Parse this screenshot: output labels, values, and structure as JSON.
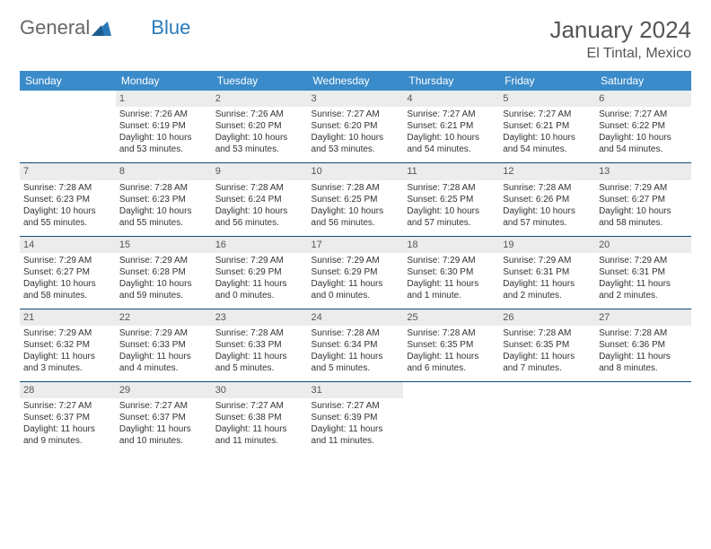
{
  "brand": {
    "part1": "General",
    "part2": "Blue"
  },
  "title": "January 2024",
  "location": "El Tintal, Mexico",
  "colors": {
    "header_bg": "#3a8bc9",
    "header_text": "#ffffff",
    "daynum_bg": "#ececec",
    "row_divider": "#0d4b7a",
    "text": "#333333",
    "title_text": "#555555",
    "logo_gray": "#666666",
    "logo_blue": "#2a7ab9"
  },
  "weekdays": [
    "Sunday",
    "Monday",
    "Tuesday",
    "Wednesday",
    "Thursday",
    "Friday",
    "Saturday"
  ],
  "weeks": [
    [
      {
        "n": "",
        "sr": "",
        "ss": "",
        "dl": ""
      },
      {
        "n": "1",
        "sr": "Sunrise: 7:26 AM",
        "ss": "Sunset: 6:19 PM",
        "dl": "Daylight: 10 hours and 53 minutes."
      },
      {
        "n": "2",
        "sr": "Sunrise: 7:26 AM",
        "ss": "Sunset: 6:20 PM",
        "dl": "Daylight: 10 hours and 53 minutes."
      },
      {
        "n": "3",
        "sr": "Sunrise: 7:27 AM",
        "ss": "Sunset: 6:20 PM",
        "dl": "Daylight: 10 hours and 53 minutes."
      },
      {
        "n": "4",
        "sr": "Sunrise: 7:27 AM",
        "ss": "Sunset: 6:21 PM",
        "dl": "Daylight: 10 hours and 54 minutes."
      },
      {
        "n": "5",
        "sr": "Sunrise: 7:27 AM",
        "ss": "Sunset: 6:21 PM",
        "dl": "Daylight: 10 hours and 54 minutes."
      },
      {
        "n": "6",
        "sr": "Sunrise: 7:27 AM",
        "ss": "Sunset: 6:22 PM",
        "dl": "Daylight: 10 hours and 54 minutes."
      }
    ],
    [
      {
        "n": "7",
        "sr": "Sunrise: 7:28 AM",
        "ss": "Sunset: 6:23 PM",
        "dl": "Daylight: 10 hours and 55 minutes."
      },
      {
        "n": "8",
        "sr": "Sunrise: 7:28 AM",
        "ss": "Sunset: 6:23 PM",
        "dl": "Daylight: 10 hours and 55 minutes."
      },
      {
        "n": "9",
        "sr": "Sunrise: 7:28 AM",
        "ss": "Sunset: 6:24 PM",
        "dl": "Daylight: 10 hours and 56 minutes."
      },
      {
        "n": "10",
        "sr": "Sunrise: 7:28 AM",
        "ss": "Sunset: 6:25 PM",
        "dl": "Daylight: 10 hours and 56 minutes."
      },
      {
        "n": "11",
        "sr": "Sunrise: 7:28 AM",
        "ss": "Sunset: 6:25 PM",
        "dl": "Daylight: 10 hours and 57 minutes."
      },
      {
        "n": "12",
        "sr": "Sunrise: 7:28 AM",
        "ss": "Sunset: 6:26 PM",
        "dl": "Daylight: 10 hours and 57 minutes."
      },
      {
        "n": "13",
        "sr": "Sunrise: 7:29 AM",
        "ss": "Sunset: 6:27 PM",
        "dl": "Daylight: 10 hours and 58 minutes."
      }
    ],
    [
      {
        "n": "14",
        "sr": "Sunrise: 7:29 AM",
        "ss": "Sunset: 6:27 PM",
        "dl": "Daylight: 10 hours and 58 minutes."
      },
      {
        "n": "15",
        "sr": "Sunrise: 7:29 AM",
        "ss": "Sunset: 6:28 PM",
        "dl": "Daylight: 10 hours and 59 minutes."
      },
      {
        "n": "16",
        "sr": "Sunrise: 7:29 AM",
        "ss": "Sunset: 6:29 PM",
        "dl": "Daylight: 11 hours and 0 minutes."
      },
      {
        "n": "17",
        "sr": "Sunrise: 7:29 AM",
        "ss": "Sunset: 6:29 PM",
        "dl": "Daylight: 11 hours and 0 minutes."
      },
      {
        "n": "18",
        "sr": "Sunrise: 7:29 AM",
        "ss": "Sunset: 6:30 PM",
        "dl": "Daylight: 11 hours and 1 minute."
      },
      {
        "n": "19",
        "sr": "Sunrise: 7:29 AM",
        "ss": "Sunset: 6:31 PM",
        "dl": "Daylight: 11 hours and 2 minutes."
      },
      {
        "n": "20",
        "sr": "Sunrise: 7:29 AM",
        "ss": "Sunset: 6:31 PM",
        "dl": "Daylight: 11 hours and 2 minutes."
      }
    ],
    [
      {
        "n": "21",
        "sr": "Sunrise: 7:29 AM",
        "ss": "Sunset: 6:32 PM",
        "dl": "Daylight: 11 hours and 3 minutes."
      },
      {
        "n": "22",
        "sr": "Sunrise: 7:29 AM",
        "ss": "Sunset: 6:33 PM",
        "dl": "Daylight: 11 hours and 4 minutes."
      },
      {
        "n": "23",
        "sr": "Sunrise: 7:28 AM",
        "ss": "Sunset: 6:33 PM",
        "dl": "Daylight: 11 hours and 5 minutes."
      },
      {
        "n": "24",
        "sr": "Sunrise: 7:28 AM",
        "ss": "Sunset: 6:34 PM",
        "dl": "Daylight: 11 hours and 5 minutes."
      },
      {
        "n": "25",
        "sr": "Sunrise: 7:28 AM",
        "ss": "Sunset: 6:35 PM",
        "dl": "Daylight: 11 hours and 6 minutes."
      },
      {
        "n": "26",
        "sr": "Sunrise: 7:28 AM",
        "ss": "Sunset: 6:35 PM",
        "dl": "Daylight: 11 hours and 7 minutes."
      },
      {
        "n": "27",
        "sr": "Sunrise: 7:28 AM",
        "ss": "Sunset: 6:36 PM",
        "dl": "Daylight: 11 hours and 8 minutes."
      }
    ],
    [
      {
        "n": "28",
        "sr": "Sunrise: 7:27 AM",
        "ss": "Sunset: 6:37 PM",
        "dl": "Daylight: 11 hours and 9 minutes."
      },
      {
        "n": "29",
        "sr": "Sunrise: 7:27 AM",
        "ss": "Sunset: 6:37 PM",
        "dl": "Daylight: 11 hours and 10 minutes."
      },
      {
        "n": "30",
        "sr": "Sunrise: 7:27 AM",
        "ss": "Sunset: 6:38 PM",
        "dl": "Daylight: 11 hours and 11 minutes."
      },
      {
        "n": "31",
        "sr": "Sunrise: 7:27 AM",
        "ss": "Sunset: 6:39 PM",
        "dl": "Daylight: 11 hours and 11 minutes."
      },
      {
        "n": "",
        "sr": "",
        "ss": "",
        "dl": ""
      },
      {
        "n": "",
        "sr": "",
        "ss": "",
        "dl": ""
      },
      {
        "n": "",
        "sr": "",
        "ss": "",
        "dl": ""
      }
    ]
  ]
}
